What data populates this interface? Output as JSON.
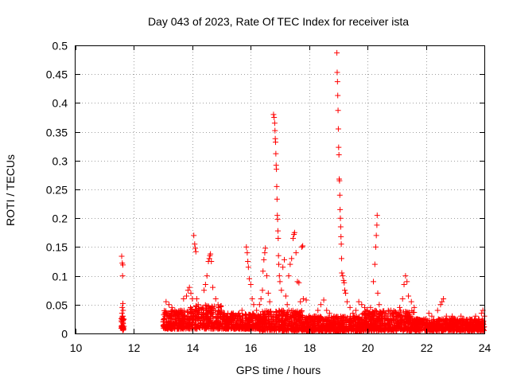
{
  "chart_data": {
    "type": "scatter",
    "title": "Day 043 of 2023, Rate Of TEC Index for receiver ista",
    "xlabel": "GPS time / hours",
    "ylabel": "ROTI / TECUs",
    "xlim": [
      10,
      24
    ],
    "ylim": [
      0,
      0.5
    ],
    "xticks": [
      10,
      12,
      14,
      16,
      18,
      20,
      22,
      24
    ],
    "xtick_labels": [
      "10",
      "12",
      "14",
      "16",
      "18",
      "20",
      "22",
      "24"
    ],
    "yticks": [
      0,
      0.05,
      0.1,
      0.15,
      0.2,
      0.25,
      0.3,
      0.35,
      0.4,
      0.45,
      0.5
    ],
    "ytick_labels": [
      "0",
      "0.05",
      "0.1",
      "0.15",
      "0.2",
      "0.25",
      "0.3",
      "0.35",
      "0.4",
      "0.45",
      "0.5"
    ],
    "grid": true,
    "marker": "+",
    "color": "#ff0000",
    "points": [
      [
        11.58,
        0.134
      ],
      [
        11.6,
        0.122
      ],
      [
        11.62,
        0.119
      ],
      [
        11.61,
        0.1
      ],
      [
        11.62,
        0.052
      ],
      [
        11.6,
        0.045
      ],
      [
        11.63,
        0.04
      ],
      [
        11.59,
        0.035
      ],
      [
        11.61,
        0.03
      ],
      [
        11.6,
        0.026
      ],
      [
        11.62,
        0.022
      ],
      [
        11.58,
        0.02
      ],
      [
        11.63,
        0.017
      ],
      [
        11.6,
        0.014
      ],
      [
        11.61,
        0.011
      ],
      [
        13.0,
        0.02
      ],
      [
        13.05,
        0.035
      ],
      [
        13.1,
        0.055
      ],
      [
        13.2,
        0.05
      ],
      [
        13.3,
        0.045
      ],
      [
        13.4,
        0.04
      ],
      [
        13.5,
        0.035
      ],
      [
        13.6,
        0.04
      ],
      [
        13.7,
        0.06
      ],
      [
        13.8,
        0.065
      ],
      [
        13.85,
        0.075
      ],
      [
        13.9,
        0.08
      ],
      [
        13.95,
        0.07
      ],
      [
        14.0,
        0.06
      ],
      [
        14.05,
        0.17
      ],
      [
        14.08,
        0.155
      ],
      [
        14.1,
        0.148
      ],
      [
        14.12,
        0.142
      ],
      [
        14.15,
        0.06
      ],
      [
        14.2,
        0.05
      ],
      [
        14.3,
        0.045
      ],
      [
        14.4,
        0.075
      ],
      [
        14.45,
        0.085
      ],
      [
        14.5,
        0.1
      ],
      [
        14.55,
        0.125
      ],
      [
        14.58,
        0.13
      ],
      [
        14.6,
        0.135
      ],
      [
        14.62,
        0.138
      ],
      [
        14.65,
        0.125
      ],
      [
        14.7,
        0.08
      ],
      [
        14.8,
        0.06
      ],
      [
        14.9,
        0.045
      ],
      [
        15.0,
        0.04
      ],
      [
        15.1,
        0.035
      ],
      [
        15.2,
        0.03
      ],
      [
        15.3,
        0.03
      ],
      [
        15.4,
        0.035
      ],
      [
        15.5,
        0.03
      ],
      [
        15.6,
        0.035
      ],
      [
        15.7,
        0.04
      ],
      [
        15.85,
        0.15
      ],
      [
        15.88,
        0.14
      ],
      [
        15.9,
        0.125
      ],
      [
        15.92,
        0.115
      ],
      [
        15.95,
        0.095
      ],
      [
        16.0,
        0.085
      ],
      [
        16.05,
        0.06
      ],
      [
        16.1,
        0.05
      ],
      [
        16.2,
        0.04
      ],
      [
        16.3,
        0.05
      ],
      [
        16.35,
        0.06
      ],
      [
        16.4,
        0.075
      ],
      [
        16.42,
        0.108
      ],
      [
        16.45,
        0.128
      ],
      [
        16.48,
        0.14
      ],
      [
        16.5,
        0.148
      ],
      [
        16.55,
        0.1
      ],
      [
        16.6,
        0.07
      ],
      [
        16.65,
        0.055
      ],
      [
        16.78,
        0.38
      ],
      [
        16.8,
        0.375
      ],
      [
        16.82,
        0.365
      ],
      [
        16.83,
        0.352
      ],
      [
        16.84,
        0.338
      ],
      [
        16.85,
        0.332
      ],
      [
        16.86,
        0.312
      ],
      [
        16.87,
        0.292
      ],
      [
        16.88,
        0.285
      ],
      [
        16.89,
        0.255
      ],
      [
        16.9,
        0.233
      ],
      [
        16.91,
        0.205
      ],
      [
        16.92,
        0.198
      ],
      [
        16.93,
        0.178
      ],
      [
        16.94,
        0.165
      ],
      [
        16.95,
        0.135
      ],
      [
        16.96,
        0.12
      ],
      [
        16.98,
        0.1
      ],
      [
        17.0,
        0.09
      ],
      [
        17.05,
        0.075
      ],
      [
        17.1,
        0.115
      ],
      [
        17.15,
        0.128
      ],
      [
        17.2,
        0.065
      ],
      [
        17.25,
        0.05
      ],
      [
        17.3,
        0.1
      ],
      [
        17.35,
        0.12
      ],
      [
        17.4,
        0.13
      ],
      [
        17.45,
        0.165
      ],
      [
        17.48,
        0.172
      ],
      [
        17.5,
        0.175
      ],
      [
        17.55,
        0.14
      ],
      [
        17.6,
        0.09
      ],
      [
        17.65,
        0.088
      ],
      [
        17.7,
        0.055
      ],
      [
        17.75,
        0.15
      ],
      [
        17.78,
        0.152
      ],
      [
        17.8,
        0.06
      ],
      [
        17.9,
        0.058
      ],
      [
        18.0,
        0.03
      ],
      [
        18.1,
        0.025
      ],
      [
        18.2,
        0.03
      ],
      [
        18.3,
        0.04
      ],
      [
        18.4,
        0.05
      ],
      [
        18.5,
        0.058
      ],
      [
        18.6,
        0.04
      ],
      [
        18.7,
        0.035
      ],
      [
        18.95,
        0.487
      ],
      [
        18.96,
        0.453
      ],
      [
        18.97,
        0.437
      ],
      [
        18.98,
        0.413
      ],
      [
        18.99,
        0.387
      ],
      [
        19.0,
        0.355
      ],
      [
        19.01,
        0.323
      ],
      [
        19.02,
        0.31
      ],
      [
        19.03,
        0.268
      ],
      [
        19.04,
        0.265
      ],
      [
        19.05,
        0.24
      ],
      [
        19.06,
        0.215
      ],
      [
        19.07,
        0.2
      ],
      [
        19.08,
        0.185
      ],
      [
        19.09,
        0.168
      ],
      [
        19.1,
        0.155
      ],
      [
        19.11,
        0.13
      ],
      [
        19.12,
        0.105
      ],
      [
        19.15,
        0.1
      ],
      [
        19.18,
        0.092
      ],
      [
        19.2,
        0.088
      ],
      [
        19.22,
        0.075
      ],
      [
        19.25,
        0.07
      ],
      [
        19.3,
        0.055
      ],
      [
        19.4,
        0.045
      ],
      [
        19.5,
        0.035
      ],
      [
        19.6,
        0.04
      ],
      [
        19.7,
        0.055
      ],
      [
        19.8,
        0.05
      ],
      [
        19.9,
        0.045
      ],
      [
        20.0,
        0.04
      ],
      [
        20.1,
        0.045
      ],
      [
        20.2,
        0.09
      ],
      [
        20.25,
        0.12
      ],
      [
        20.28,
        0.15
      ],
      [
        20.3,
        0.17
      ],
      [
        20.32,
        0.188
      ],
      [
        20.33,
        0.205
      ],
      [
        20.35,
        0.07
      ],
      [
        20.4,
        0.05
      ],
      [
        20.5,
        0.03
      ],
      [
        20.6,
        0.035
      ],
      [
        20.7,
        0.03
      ],
      [
        20.8,
        0.04
      ],
      [
        20.9,
        0.03
      ],
      [
        21.0,
        0.035
      ],
      [
        21.1,
        0.045
      ],
      [
        21.2,
        0.06
      ],
      [
        21.25,
        0.085
      ],
      [
        21.3,
        0.1
      ],
      [
        21.35,
        0.09
      ],
      [
        21.4,
        0.065
      ],
      [
        21.5,
        0.055
      ],
      [
        21.6,
        0.045
      ],
      [
        21.7,
        0.025
      ],
      [
        21.8,
        0.02
      ],
      [
        21.9,
        0.02
      ],
      [
        22.0,
        0.025
      ],
      [
        22.1,
        0.035
      ],
      [
        22.2,
        0.03
      ],
      [
        22.3,
        0.02
      ],
      [
        22.4,
        0.04
      ],
      [
        22.5,
        0.05
      ],
      [
        22.55,
        0.055
      ],
      [
        22.6,
        0.06
      ],
      [
        22.7,
        0.03
      ],
      [
        22.8,
        0.025
      ],
      [
        22.9,
        0.03
      ],
      [
        23.0,
        0.025
      ],
      [
        23.1,
        0.02
      ],
      [
        23.2,
        0.03
      ],
      [
        23.3,
        0.025
      ],
      [
        23.4,
        0.02
      ],
      [
        23.5,
        0.025
      ],
      [
        23.6,
        0.02
      ],
      [
        23.7,
        0.03
      ],
      [
        23.8,
        0.025
      ],
      [
        23.9,
        0.035
      ],
      [
        23.95,
        0.04
      ],
      [
        24.0,
        0.03
      ]
    ],
    "dense_bands": [
      {
        "x": [
          11.55,
          11.66
        ],
        "y": [
          0.005,
          0.03
        ]
      },
      {
        "x": [
          13.0,
          13.9
        ],
        "y": [
          0.008,
          0.04
        ]
      },
      {
        "x": [
          13.9,
          15.0
        ],
        "y": [
          0.008,
          0.05
        ]
      },
      {
        "x": [
          15.0,
          16.3
        ],
        "y": [
          0.008,
          0.035
        ]
      },
      {
        "x": [
          16.3,
          17.8
        ],
        "y": [
          0.005,
          0.04
        ]
      },
      {
        "x": [
          17.8,
          19.8
        ],
        "y": [
          0.004,
          0.03
        ]
      },
      {
        "x": [
          19.8,
          21.6
        ],
        "y": [
          0.005,
          0.04
        ]
      },
      {
        "x": [
          21.6,
          24.0
        ],
        "y": [
          0.005,
          0.025
        ]
      }
    ]
  }
}
